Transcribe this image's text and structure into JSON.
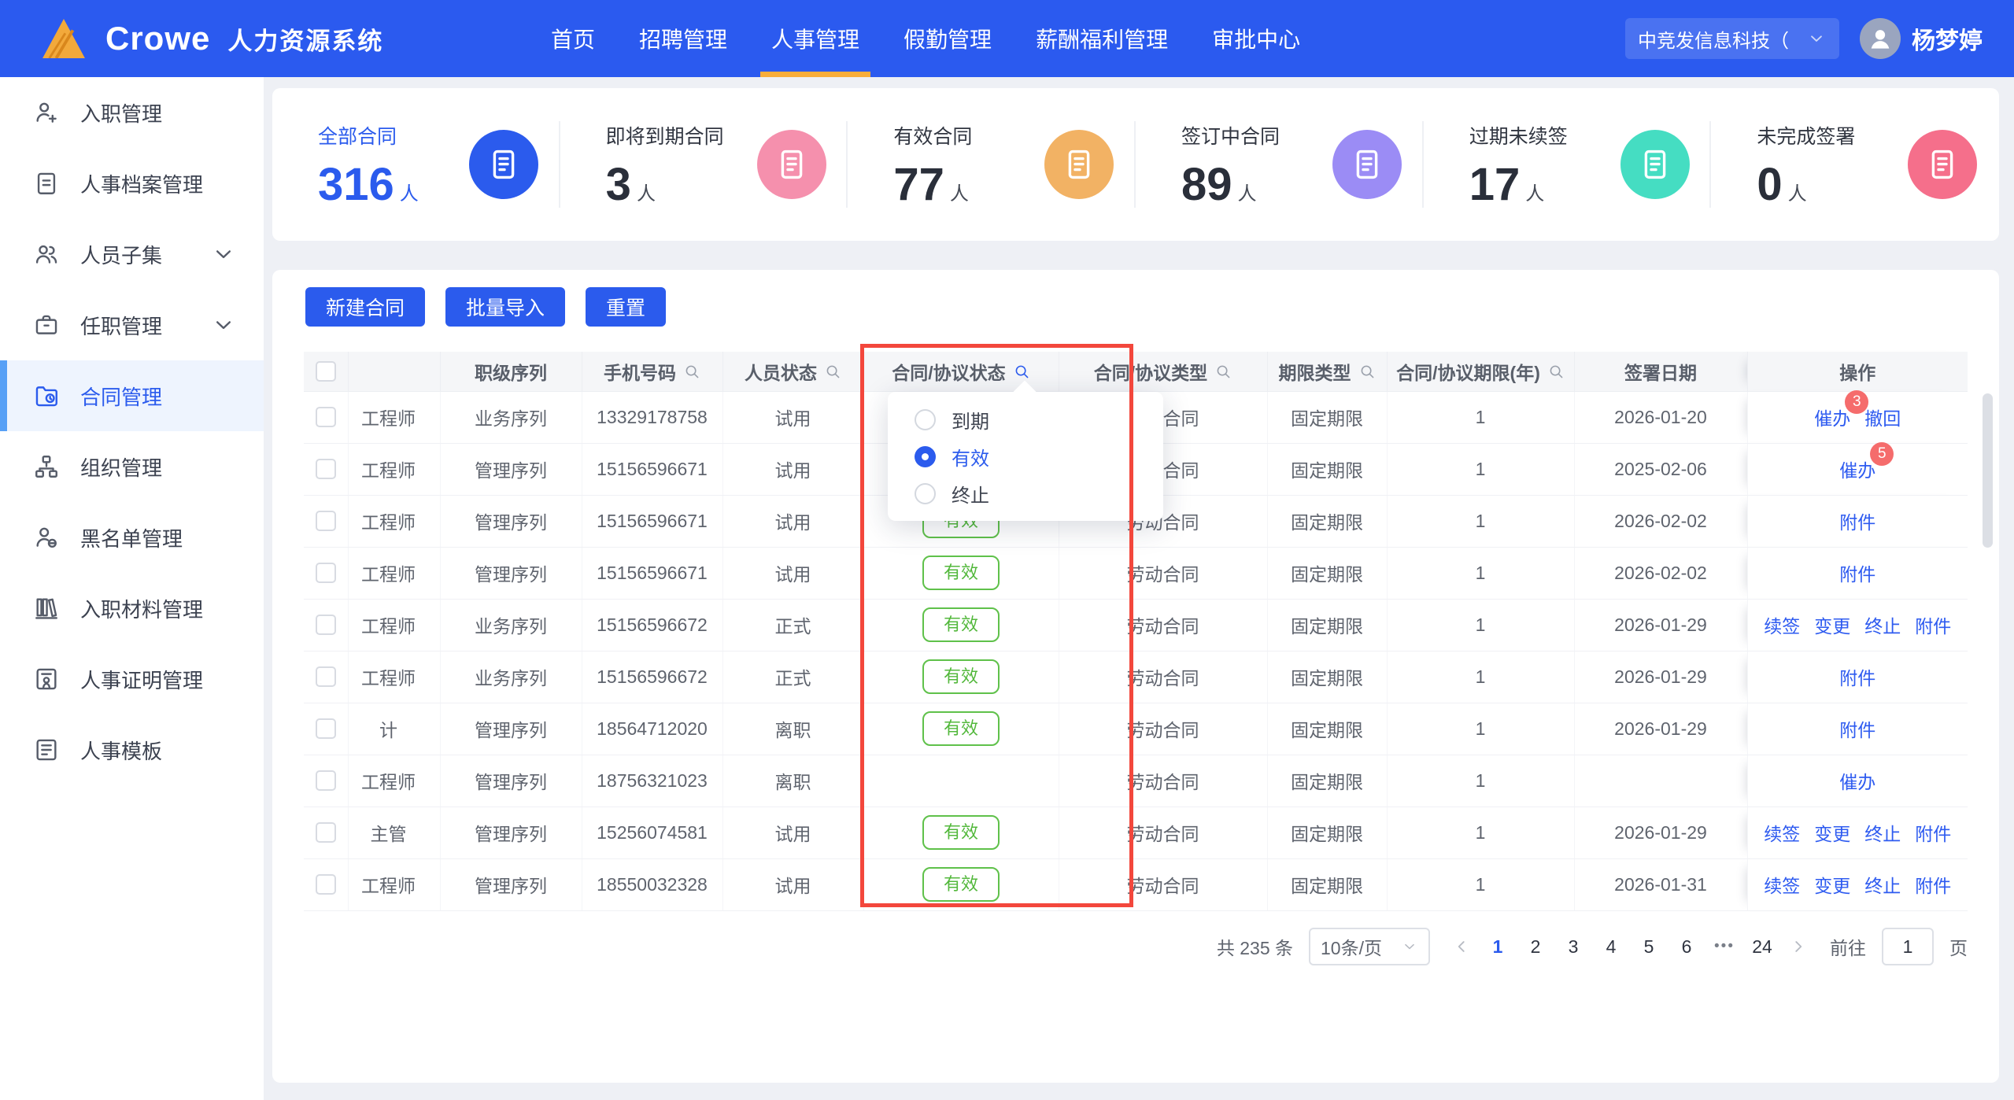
{
  "navbar": {
    "logo_text": "Crowe",
    "system_name": "人力资源系统",
    "menu": [
      {
        "label": "首页",
        "active": false
      },
      {
        "label": "招聘管理",
        "active": false
      },
      {
        "label": "人事管理",
        "active": true
      },
      {
        "label": "假勤管理",
        "active": false
      },
      {
        "label": "薪酬福利管理",
        "active": false
      },
      {
        "label": "审批中心",
        "active": false
      }
    ],
    "company": "中竞发信息科技（",
    "user_name": "杨梦婷"
  },
  "sidebar": {
    "items": [
      {
        "label": "入职管理",
        "icon": "user-add-icon",
        "active": false,
        "expandable": false
      },
      {
        "label": "人事档案管理",
        "icon": "document-icon",
        "active": false,
        "expandable": false
      },
      {
        "label": "人员子集",
        "icon": "users-icon",
        "active": false,
        "expandable": true
      },
      {
        "label": "任职管理",
        "icon": "briefcase-icon",
        "active": false,
        "expandable": true
      },
      {
        "label": "合同管理",
        "icon": "contract-folder-icon",
        "active": true,
        "expandable": false
      },
      {
        "label": "组织管理",
        "icon": "org-chart-icon",
        "active": false,
        "expandable": false
      },
      {
        "label": "黑名单管理",
        "icon": "user-block-icon",
        "active": false,
        "expandable": false
      },
      {
        "label": "入职材料管理",
        "icon": "books-icon",
        "active": false,
        "expandable": false
      },
      {
        "label": "人事证明管理",
        "icon": "certificate-icon",
        "active": false,
        "expandable": false
      },
      {
        "label": "人事模板",
        "icon": "template-icon",
        "active": false,
        "expandable": false
      }
    ]
  },
  "stats": {
    "cards": [
      {
        "label": "全部合同",
        "value": "316",
        "unit": "人",
        "icon_color": "#2b5bed",
        "accent": true
      },
      {
        "label": "即将到期合同",
        "value": "3",
        "unit": "人",
        "icon_color": "#f590ad",
        "accent": false
      },
      {
        "label": "有效合同",
        "value": "77",
        "unit": "人",
        "icon_color": "#f2b264",
        "accent": false
      },
      {
        "label": "签订中合同",
        "value": "89",
        "unit": "人",
        "icon_color": "#9b8cf5",
        "accent": false
      },
      {
        "label": "过期未续签",
        "value": "17",
        "unit": "人",
        "icon_color": "#45ddc2",
        "accent": false
      },
      {
        "label": "未完成签署",
        "value": "0",
        "unit": "人",
        "icon_color": "#f56f8b",
        "accent": false
      }
    ]
  },
  "toolbar": {
    "buttons": [
      "新建合同",
      "批量导入",
      "重置"
    ]
  },
  "table": {
    "columns": [
      {
        "label": "",
        "kind": "checkbox",
        "search": false,
        "highlighted": false
      },
      {
        "label": "",
        "kind": "name",
        "search": false,
        "highlighted": false
      },
      {
        "label": "职级序列",
        "search": false,
        "highlighted": false
      },
      {
        "label": "手机号码",
        "search": true,
        "highlighted": false
      },
      {
        "label": "人员状态",
        "search": true,
        "highlighted": false
      },
      {
        "label": "合同/协议状态",
        "search": true,
        "highlighted": true
      },
      {
        "label": "合同/协议类型",
        "search": true,
        "highlighted": false
      },
      {
        "label": "期限类型",
        "search": true,
        "highlighted": false
      },
      {
        "label": "合同/协议期限(年)",
        "search": true,
        "highlighted": false
      },
      {
        "label": "签署日期",
        "search": false,
        "highlighted": false
      },
      {
        "label": "操作",
        "search": false,
        "highlighted": false
      }
    ],
    "rows": [
      {
        "name": "工程师",
        "level": "业务序列",
        "phone": "13329178758",
        "person_status": "试用",
        "contract_status": "",
        "type": "劳动合同",
        "term_type": "固定期限",
        "years": "1",
        "sign_date": "2026-01-20",
        "ops": [
          {
            "label": "催办",
            "badge": "3"
          },
          {
            "label": "撤回",
            "badge": ""
          }
        ]
      },
      {
        "name": "工程师",
        "level": "管理序列",
        "phone": "15156596671",
        "person_status": "试用",
        "contract_status": "",
        "type": "劳动合同",
        "term_type": "固定期限",
        "years": "1",
        "sign_date": "2025-02-06",
        "ops": [
          {
            "label": "催办",
            "badge": "5"
          }
        ]
      },
      {
        "name": "工程师",
        "level": "管理序列",
        "phone": "15156596671",
        "person_status": "试用",
        "contract_status": "有效",
        "type": "劳动合同",
        "term_type": "固定期限",
        "years": "1",
        "sign_date": "2026-02-02",
        "ops": [
          {
            "label": "附件",
            "badge": ""
          }
        ]
      },
      {
        "name": "工程师",
        "level": "管理序列",
        "phone": "15156596671",
        "person_status": "试用",
        "contract_status": "有效",
        "type": "劳动合同",
        "term_type": "固定期限",
        "years": "1",
        "sign_date": "2026-02-02",
        "ops": [
          {
            "label": "附件",
            "badge": ""
          }
        ]
      },
      {
        "name": "工程师",
        "level": "业务序列",
        "phone": "15156596672",
        "person_status": "正式",
        "contract_status": "有效",
        "type": "劳动合同",
        "term_type": "固定期限",
        "years": "1",
        "sign_date": "2026-01-29",
        "ops": [
          {
            "label": "续签",
            "badge": ""
          },
          {
            "label": "变更",
            "badge": ""
          },
          {
            "label": "终止",
            "badge": ""
          },
          {
            "label": "附件",
            "badge": ""
          }
        ]
      },
      {
        "name": "工程师",
        "level": "业务序列",
        "phone": "15156596672",
        "person_status": "正式",
        "contract_status": "有效",
        "type": "劳动合同",
        "term_type": "固定期限",
        "years": "1",
        "sign_date": "2026-01-29",
        "ops": [
          {
            "label": "附件",
            "badge": ""
          }
        ]
      },
      {
        "name": "计",
        "level": "管理序列",
        "phone": "18564712020",
        "person_status": "离职",
        "contract_status": "有效",
        "type": "劳动合同",
        "term_type": "固定期限",
        "years": "1",
        "sign_date": "2026-01-29",
        "ops": [
          {
            "label": "附件",
            "badge": ""
          }
        ]
      },
      {
        "name": "工程师",
        "level": "管理序列",
        "phone": "18756321023",
        "person_status": "离职",
        "contract_status": "",
        "type": "劳动合同",
        "term_type": "固定期限",
        "years": "1",
        "sign_date": "",
        "ops": [
          {
            "label": "催办",
            "badge": ""
          }
        ]
      },
      {
        "name": "主管",
        "level": "管理序列",
        "phone": "15256074581",
        "person_status": "试用",
        "contract_status": "有效",
        "type": "劳动合同",
        "term_type": "固定期限",
        "years": "1",
        "sign_date": "2026-01-29",
        "ops": [
          {
            "label": "续签",
            "badge": ""
          },
          {
            "label": "变更",
            "badge": ""
          },
          {
            "label": "终止",
            "badge": ""
          },
          {
            "label": "附件",
            "badge": ""
          }
        ]
      },
      {
        "name": "工程师",
        "level": "管理序列",
        "phone": "18550032328",
        "person_status": "试用",
        "contract_status": "有效",
        "type": "劳动合同",
        "term_type": "固定期限",
        "years": "1",
        "sign_date": "2026-01-31",
        "ops": [
          {
            "label": "续签",
            "badge": ""
          },
          {
            "label": "变更",
            "badge": ""
          },
          {
            "label": "终止",
            "badge": ""
          },
          {
            "label": "附件",
            "badge": ""
          }
        ]
      }
    ]
  },
  "filter_popup": {
    "options": [
      {
        "label": "到期",
        "selected": false
      },
      {
        "label": "有效",
        "selected": true
      },
      {
        "label": "终止",
        "selected": false
      }
    ]
  },
  "pagination": {
    "total_text": "共 235 条",
    "page_size": "10条/页",
    "pages": [
      "1",
      "2",
      "3",
      "4",
      "5",
      "6"
    ],
    "active_page": "1",
    "ellipsis": "•••",
    "last_page": "24",
    "goto_label": "前往",
    "goto_value": "1",
    "goto_suffix": "页"
  },
  "colors": {
    "navbar_blue": "#2b5aef",
    "accent_blue": "#2b5bed",
    "active_underline": "#f8ad3a",
    "badge_green": "#5fc14a",
    "notify_red": "#f56c6c",
    "annotation_red": "#f3473c"
  }
}
